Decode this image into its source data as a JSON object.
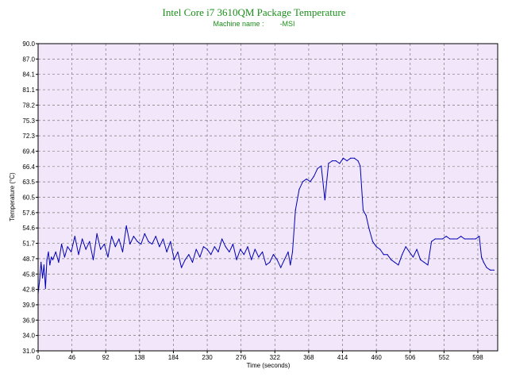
{
  "chart_data": {
    "type": "line",
    "title": "Intel Core i7 3610QM Package Temperature",
    "subtitle": "Machine name :        -MSI",
    "xlabel": "Time (seconds)",
    "ylabel": "Temperature (°C)",
    "xlim": [
      0,
      625
    ],
    "ylim": [
      31.0,
      90.0
    ],
    "x_ticks": [
      "0",
      "46",
      "92",
      "138",
      "184",
      "230",
      "276",
      "322",
      "368",
      "414",
      "460",
      "506",
      "552",
      "598"
    ],
    "y_ticks": [
      "31.0",
      "34.0",
      "36.9",
      "39.9",
      "42.8",
      "45.8",
      "48.7",
      "51.7",
      "54.6",
      "57.6",
      "60.5",
      "63.5",
      "66.4",
      "69.4",
      "72.3",
      "75.3",
      "78.2",
      "81.1",
      "84.1",
      "87.0",
      "90.0"
    ],
    "grid": true,
    "colors": {
      "line": "#0000b4",
      "plot_bg": "#f2e6fa",
      "grid": "#7a7a7a",
      "title": "#1a8f1a"
    },
    "series": [
      {
        "x": [
          0,
          2,
          4,
          6,
          8,
          10,
          12,
          14,
          16,
          18,
          20,
          24,
          28,
          32,
          36,
          40,
          45,
          50,
          55,
          60,
          65,
          70,
          75,
          80,
          85,
          90,
          95,
          100,
          105,
          110,
          115,
          120,
          125,
          130,
          135,
          140,
          145,
          150,
          155,
          160,
          165,
          170,
          175,
          180,
          185,
          190,
          195,
          200,
          205,
          210,
          215,
          220,
          225,
          230,
          235,
          240,
          245,
          250,
          255,
          260,
          265,
          270,
          275,
          280,
          285,
          290,
          295,
          300,
          305,
          310,
          315,
          320,
          325,
          330,
          335,
          340,
          343,
          346,
          350,
          355,
          360,
          365,
          370,
          375,
          380,
          385,
          390,
          395,
          400,
          405,
          410,
          415,
          420,
          425,
          430,
          435,
          438,
          442,
          446,
          450,
          455,
          460,
          465,
          470,
          475,
          480,
          485,
          490,
          495,
          500,
          505,
          510,
          515,
          520,
          525,
          530,
          535,
          540,
          545,
          550,
          555,
          560,
          565,
          570,
          575,
          580,
          585,
          590,
          595,
          600,
          603,
          606,
          610,
          615,
          620
        ],
        "values": [
          42.0,
          44.5,
          48.0,
          45.0,
          47.5,
          43.0,
          48.5,
          50.0,
          47.5,
          49.0,
          48.5,
          50.0,
          48.0,
          51.5,
          49.0,
          51.0,
          50.0,
          53.0,
          49.5,
          52.5,
          50.5,
          52.0,
          48.5,
          53.5,
          50.5,
          51.5,
          49.0,
          53.0,
          51.0,
          52.5,
          50.0,
          55.0,
          51.5,
          53.0,
          52.0,
          51.5,
          53.5,
          52.0,
          51.5,
          53.0,
          51.0,
          52.5,
          50.0,
          52.0,
          48.5,
          50.0,
          47.0,
          48.5,
          49.5,
          48.0,
          50.5,
          49.0,
          51.0,
          50.5,
          49.5,
          51.0,
          50.0,
          52.5,
          51.0,
          50.0,
          51.5,
          48.5,
          50.5,
          49.5,
          51.0,
          48.5,
          50.5,
          49.0,
          50.0,
          47.5,
          48.0,
          49.5,
          48.5,
          47.0,
          48.5,
          50.0,
          47.5,
          50.0,
          58.0,
          62.0,
          63.5,
          64.0,
          63.5,
          64.5,
          66.0,
          66.5,
          60.0,
          67.0,
          67.5,
          67.5,
          67.0,
          68.0,
          67.5,
          68.0,
          68.0,
          67.5,
          66.5,
          58.0,
          57.0,
          54.5,
          52.0,
          51.0,
          50.5,
          49.5,
          49.5,
          48.5,
          48.0,
          47.5,
          49.5,
          51.0,
          50.0,
          49.0,
          50.5,
          48.5,
          48.0,
          47.5,
          52.0,
          52.5,
          52.5,
          52.5,
          53.0,
          52.5,
          52.5,
          52.5,
          53.0,
          52.5,
          52.5,
          52.5,
          52.5,
          53.0,
          49.0,
          48.0,
          47.0,
          46.5,
          46.5
        ]
      }
    ]
  }
}
